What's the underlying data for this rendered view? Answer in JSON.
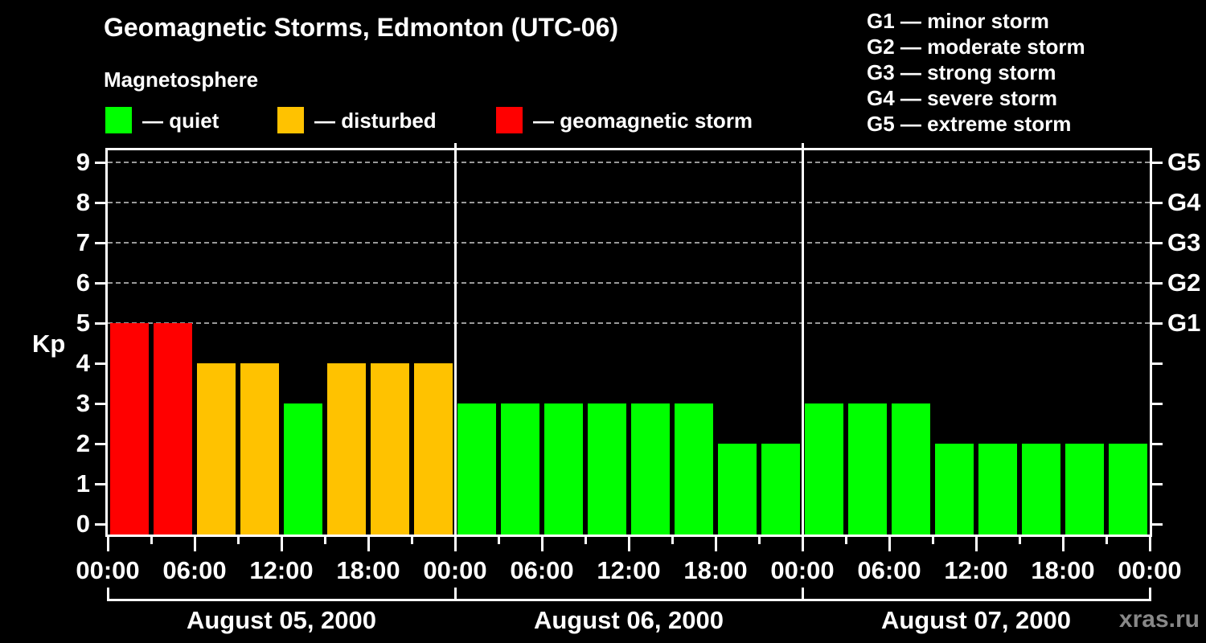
{
  "title": "Geomagnetic Storms, Edmonton (UTC-06)",
  "subtitle": "Magnetosphere",
  "legend": {
    "items": [
      {
        "key": "quiet",
        "label": "— quiet"
      },
      {
        "key": "disturbed",
        "label": "— disturbed"
      },
      {
        "key": "storm",
        "label": "— geomagnetic storm"
      }
    ]
  },
  "storm_scale_legend": [
    "G1 — minor storm",
    "G2 — moderate storm",
    "G3 — strong storm",
    "G4 — severe storm",
    "G5 — extreme storm"
  ],
  "watermark": "xras.ru",
  "chart_data": {
    "type": "bar",
    "title": "Geomagnetic Storms, Edmonton (UTC-06)",
    "subtitle": "Magnetosphere",
    "ylabel": "Kp",
    "ylim": [
      0,
      9
    ],
    "yticks": [
      0,
      1,
      2,
      3,
      4,
      5,
      6,
      7,
      8,
      9
    ],
    "gridlines_kp": [
      5,
      6,
      7,
      8,
      9
    ],
    "grid_style": "dashed gray horizontal lines at storm levels only",
    "right_axis_labels": [
      {
        "label": "G1",
        "kp": 5
      },
      {
        "label": "G2",
        "kp": 6
      },
      {
        "label": "G3",
        "kp": 7
      },
      {
        "label": "G4",
        "kp": 8
      },
      {
        "label": "G5",
        "kp": 9
      }
    ],
    "bar_interval_hours": 3,
    "x_tick_labels_every_6h": [
      "00:00",
      "06:00",
      "12:00",
      "18:00",
      "00:00",
      "06:00",
      "12:00",
      "18:00",
      "00:00",
      "06:00",
      "12:00",
      "18:00",
      "00:00"
    ],
    "days": [
      {
        "date": "August 05, 2000",
        "kp": [
          5,
          5,
          4,
          4,
          3,
          4,
          4,
          4
        ]
      },
      {
        "date": "August 06, 2000",
        "kp": [
          3,
          3,
          3,
          3,
          3,
          3,
          2,
          2
        ]
      },
      {
        "date": "August 07, 2000",
        "kp": [
          3,
          3,
          3,
          2,
          2,
          2,
          2,
          2
        ]
      }
    ],
    "color_rules": {
      "quiet_max_kp": 3,
      "disturbed_kp": 4,
      "storm_min_kp": 5
    },
    "colors": {
      "quiet": "#00ff00",
      "disturbed": "#ffc200",
      "storm": "#ff0000",
      "grid": "#999999",
      "axis": "#ffffff",
      "background": "#000000",
      "watermark": "#888888"
    },
    "legend_position": "top-left under subtitle; storm-scale legend top-right"
  }
}
